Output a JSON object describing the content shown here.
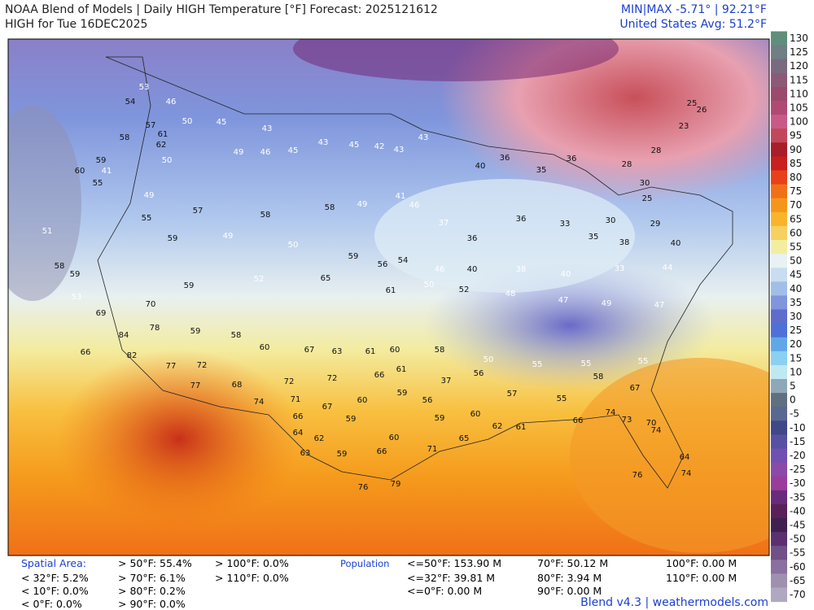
{
  "header": {
    "title": "NOAA Blend of Models | Daily HIGH Temperature [°F] Forecast: 2025121612",
    "subtitle": "HIGH for Tue 16DEC2025",
    "minmax": "MIN|MAX -5.71° | 92.21°F",
    "average": "United States Avg: 51.2°F"
  },
  "color_scale": {
    "ticks": [
      130,
      125,
      120,
      115,
      110,
      105,
      100,
      95,
      90,
      85,
      80,
      75,
      70,
      65,
      60,
      55,
      50,
      45,
      40,
      35,
      30,
      25,
      20,
      15,
      10,
      5,
      0,
      -5,
      -10,
      -15,
      -20,
      -25,
      -30,
      -35,
      -40,
      -45,
      -50,
      -55,
      -60,
      -65,
      -70
    ],
    "colors": [
      "#5f8f7a",
      "#6f7f84",
      "#7a6a80",
      "#8c5a78",
      "#9a4a6c",
      "#b04a74",
      "#c85a8a",
      "#c0485a",
      "#a81e2a",
      "#c8201e",
      "#e8401a",
      "#f07018",
      "#f5961c",
      "#f8b52a",
      "#f6d060",
      "#f2eea0",
      "#e8f2f4",
      "#c8ddf0",
      "#a0bee8",
      "#7f95dc",
      "#5f6ccc",
      "#4f70d8",
      "#5fa8e8",
      "#8ad0f0",
      "#c0e8f0",
      "#8fa8b8",
      "#607080",
      "#586890",
      "#404888",
      "#5850a0",
      "#7050b0",
      "#8a4aa8",
      "#9a3c9c",
      "#6a2a7a",
      "#5a2058",
      "#402050",
      "#5a3070",
      "#705088",
      "#8a70a0",
      "#a090b0",
      "#b0a8c0"
    ]
  },
  "stations": [
    53,
    54,
    46,
    57,
    50,
    45,
    43,
    61,
    62,
    58,
    59,
    50,
    49,
    46,
    45,
    43,
    45,
    42,
    43,
    43,
    40,
    36,
    35,
    36,
    28,
    28,
    25,
    26,
    23,
    30,
    25,
    30,
    29,
    55,
    60,
    41,
    49,
    57,
    58,
    58,
    49,
    41,
    46,
    37,
    36,
    36,
    33,
    35,
    38,
    40,
    55,
    59,
    49,
    50,
    59,
    56,
    54,
    46,
    40,
    38,
    40,
    33,
    44,
    59,
    52,
    65,
    61,
    50,
    52,
    48,
    47,
    49,
    47,
    53,
    70,
    59,
    58,
    60,
    67,
    63,
    61,
    60,
    58,
    50,
    55,
    55,
    55,
    84,
    78,
    82,
    77,
    72,
    77,
    68,
    72,
    72,
    66,
    61,
    37,
    56,
    57,
    55,
    58,
    67,
    74,
    71,
    67,
    60,
    59,
    56,
    60,
    61,
    66,
    73,
    66,
    59,
    59,
    62,
    74,
    64,
    62,
    60,
    65,
    70,
    63,
    59,
    66,
    71,
    74,
    64,
    76,
    79,
    76,
    74,
    69,
    66,
    58,
    51,
    59
  ],
  "footer": {
    "spatial_label": "Spatial Area:",
    "spatial": [
      "< 32°F: 5.2%",
      "< 10°F: 0.0%",
      "< 0°F: 0.0%",
      "> 50°F: 55.4%",
      "> 70°F: 6.1%",
      "> 80°F: 0.2%",
      "> 90°F: 0.0%",
      "> 100°F: 0.0%",
      "> 110°F: 0.0%"
    ],
    "population_label": "Population",
    "population": [
      "<=50°F: 153.90 M",
      "<=32°F: 39.81 M",
      "<=0°F: 0.00 M",
      "70°F: 50.12 M",
      "80°F: 3.94 M",
      "90°F: 0.00 M",
      "100°F: 0.00 M",
      "110°F: 0.00 M"
    ],
    "credit": "Blend v4.3 | weathermodels.com"
  }
}
